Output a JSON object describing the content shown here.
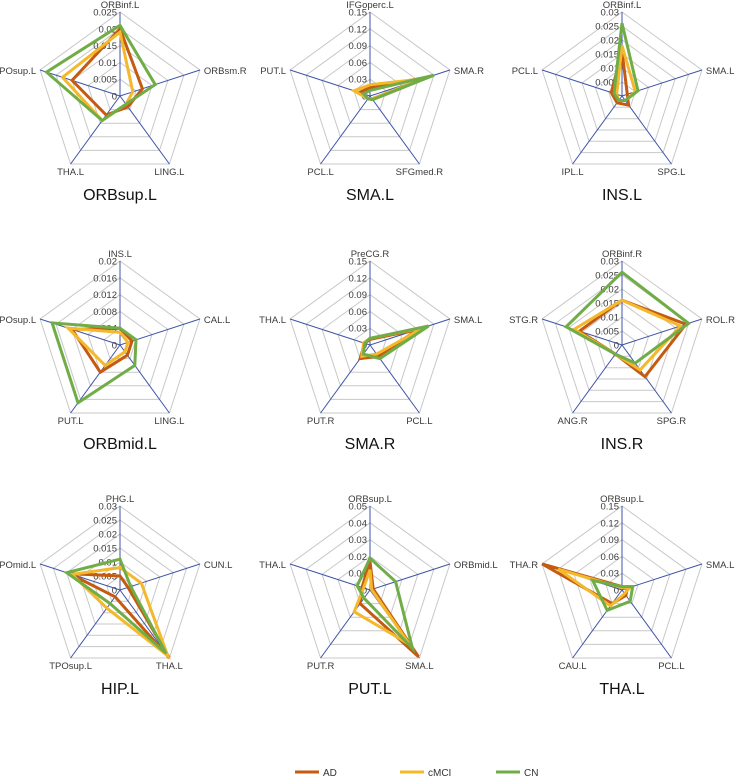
{
  "colors": {
    "AD": "#c55a11",
    "cMCI": "#f4b82c",
    "CN": "#70ad47",
    "grid": "#c8c8c8",
    "spoke": "#3f54a8"
  },
  "legend": [
    "AD",
    "cMCI",
    "CN"
  ],
  "chart_data": [
    {
      "type": "radar",
      "title": "ORBsup.L",
      "axes": [
        "ORBinf.L",
        "ORBsm.R",
        "LING.L",
        "THA.L",
        "TPOsup.L"
      ],
      "ticks": [
        "0",
        "0.005",
        "0.01",
        "0.015",
        "0.02",
        "0.025"
      ],
      "rmax": 0.025,
      "series": [
        {
          "name": "AD",
          "values": [
            0.02,
            0.007,
            0.004,
            0.007,
            0.015
          ]
        },
        {
          "name": "cMCI",
          "values": [
            0.019,
            0.004,
            0.003,
            0.009,
            0.018
          ]
        },
        {
          "name": "CN",
          "values": [
            0.021,
            0.011,
            0.003,
            0.009,
            0.023
          ]
        }
      ]
    },
    {
      "type": "radar",
      "title": "SMA.L",
      "axes": [
        "IFGoperc.L",
        "SMA.R",
        "SFGmed.R",
        "PCL.L",
        "PUT.L"
      ],
      "ticks": [
        "0",
        "0.03",
        "0.06",
        "0.09",
        "0.12",
        "0.15"
      ],
      "rmax": 0.15,
      "series": [
        {
          "name": "AD",
          "values": [
            0.015,
            0.11,
            0.008,
            0.006,
            0.02
          ]
        },
        {
          "name": "cMCI",
          "values": [
            0.02,
            0.1,
            0.006,
            0.006,
            0.03
          ]
        },
        {
          "name": "CN",
          "values": [
            0.01,
            0.12,
            0.008,
            0.006,
            0.012
          ]
        }
      ]
    },
    {
      "type": "radar",
      "title": "INS.L",
      "axes": [
        "ORBinf.L",
        "SMA.L",
        "SPG.L",
        "IPL.L",
        "PCL.L"
      ],
      "ticks": [
        "0",
        "0.005",
        "0.01",
        "0.015",
        "0.02",
        "0.025",
        "0.03"
      ],
      "rmax": 0.03,
      "series": [
        {
          "name": "AD",
          "values": [
            0.016,
            0.002,
            0.004,
            0.003,
            0.004
          ]
        },
        {
          "name": "cMCI",
          "values": [
            0.018,
            0.005,
            0.002,
            0.002,
            0.002
          ]
        },
        {
          "name": "CN",
          "values": [
            0.026,
            0.006,
            0.002,
            0.002,
            0.003
          ]
        }
      ]
    },
    {
      "type": "radar",
      "title": "ORBmid.L",
      "axes": [
        "INS.L",
        "CAL.L",
        "LING.L",
        "PUT.L",
        "TPOsup.L"
      ],
      "ticks": [
        "0",
        "0.004",
        "0.008",
        "0.012",
        "0.016",
        "0.02"
      ],
      "rmax": 0.02,
      "series": [
        {
          "name": "AD",
          "values": [
            0.004,
            0.003,
            0.003,
            0.008,
            0.012
          ]
        },
        {
          "name": "cMCI",
          "values": [
            0.003,
            0.002,
            0.002,
            0.006,
            0.013
          ]
        },
        {
          "name": "CN",
          "values": [
            0.004,
            0.004,
            0.006,
            0.017,
            0.017
          ]
        }
      ]
    },
    {
      "type": "radar",
      "title": "SMA.R",
      "axes": [
        "PreCG.R",
        "SMA.L",
        "PCL.L",
        "PUT.R",
        "THA.L"
      ],
      "ticks": [
        "0",
        "0.03",
        "0.06",
        "0.09",
        "0.12",
        "0.15"
      ],
      "rmax": 0.15,
      "series": [
        {
          "name": "AD",
          "values": [
            0.01,
            0.09,
            0.025,
            0.03,
            0.01
          ]
        },
        {
          "name": "cMCI",
          "values": [
            0.012,
            0.1,
            0.02,
            0.025,
            0.012
          ]
        },
        {
          "name": "CN",
          "values": [
            0.012,
            0.11,
            0.03,
            0.02,
            0.01
          ]
        }
      ]
    },
    {
      "type": "radar",
      "title": "INS.R",
      "axes": [
        "ORBinf.R",
        "ROL.R",
        "SPG.R",
        "ANG.R",
        "STG.R"
      ],
      "ticks": [
        "0",
        "0.005",
        "0.01",
        "0.015",
        "0.02",
        "0.025",
        "0.03"
      ],
      "rmax": 0.03,
      "series": [
        {
          "name": "AD",
          "values": [
            0.016,
            0.024,
            0.014,
            0.004,
            0.016
          ]
        },
        {
          "name": "cMCI",
          "values": [
            0.016,
            0.022,
            0.011,
            0.004,
            0.018
          ]
        },
        {
          "name": "CN",
          "values": [
            0.026,
            0.025,
            0.008,
            0.004,
            0.021
          ]
        }
      ]
    },
    {
      "type": "radar",
      "title": "HIP.L",
      "axes": [
        "PHG.L",
        "CUN.L",
        "THA.L",
        "TPOsup.L",
        "TPOmid.L"
      ],
      "ticks": [
        "0",
        "0.005",
        "0.01",
        "0.015",
        "0.02",
        "0.025",
        "0.03"
      ],
      "rmax": 0.03,
      "series": [
        {
          "name": "AD",
          "values": [
            0.005,
            0.003,
            0.03,
            0.003,
            0.019
          ]
        },
        {
          "name": "cMCI",
          "values": [
            0.008,
            0.008,
            0.029,
            0.008,
            0.018
          ]
        },
        {
          "name": "CN",
          "values": [
            0.011,
            0.004,
            0.028,
            0.006,
            0.02
          ]
        }
      ]
    },
    {
      "type": "radar",
      "title": "PUT.L",
      "axes": [
        "ORBsup.L",
        "ORBmid.L",
        "SMA.L",
        "PUT.R",
        "THA.L"
      ],
      "ticks": [
        "0",
        "0.01",
        "0.02",
        "0.03",
        "0.04",
        "0.05"
      ],
      "rmax": 0.05,
      "series": [
        {
          "name": "AD",
          "values": [
            0.017,
            0.002,
            0.049,
            0.01,
            0.005
          ]
        },
        {
          "name": "cMCI",
          "values": [
            0.012,
            0.001,
            0.04,
            0.016,
            0.004
          ]
        },
        {
          "name": "CN",
          "values": [
            0.019,
            0.016,
            0.043,
            0.006,
            0.008
          ]
        }
      ]
    },
    {
      "type": "radar",
      "title": "THA.L",
      "axes": [
        "ORBsup.L",
        "SMA.L",
        "PCL.L",
        "CAU.L",
        "THA.R"
      ],
      "ticks": [
        "0",
        "0.03",
        "0.06",
        "0.09",
        "0.12",
        "0.15"
      ],
      "rmax": 0.15,
      "series": [
        {
          "name": "AD",
          "values": [
            0.006,
            0.01,
            0.012,
            0.03,
            0.15
          ]
        },
        {
          "name": "cMCI",
          "values": [
            0.004,
            0.015,
            0.008,
            0.035,
            0.12
          ]
        },
        {
          "name": "CN",
          "values": [
            0.006,
            0.02,
            0.025,
            0.045,
            0.055
          ]
        }
      ]
    }
  ]
}
